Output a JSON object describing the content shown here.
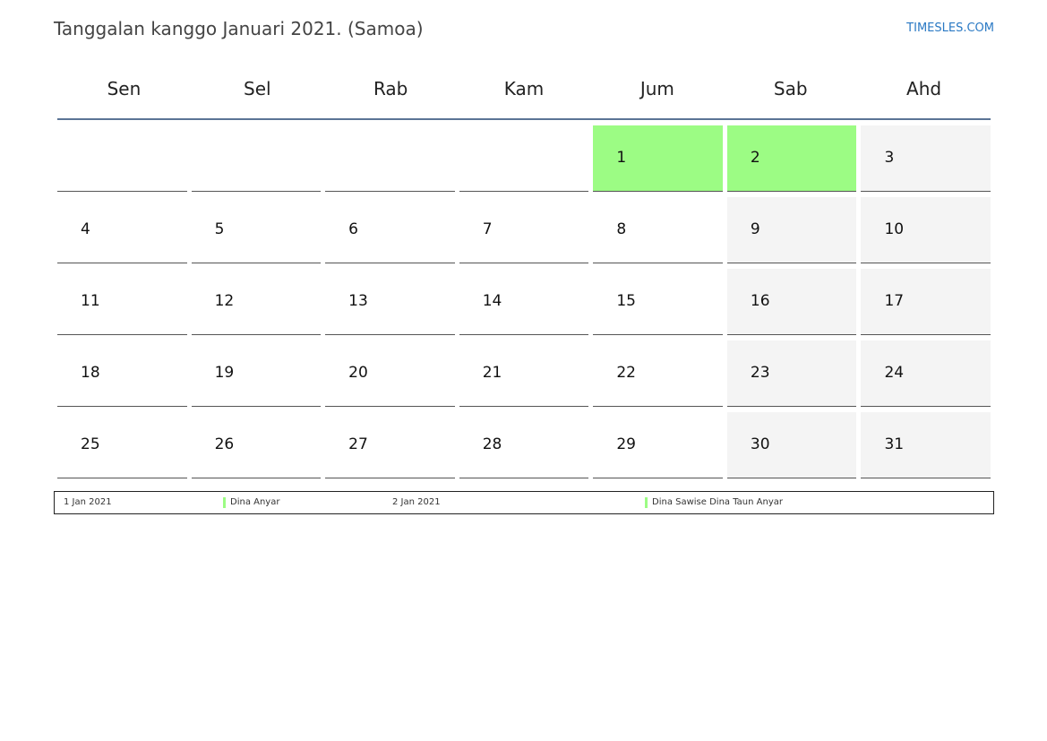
{
  "header": {
    "title": "Tanggalan kanggo Januari 2021. (Samoa)",
    "brand": "TIMESLES.COM"
  },
  "colors": {
    "holiday": "#9cfc84",
    "weekend": "#f4f4f4",
    "rule": "#5b7495",
    "brand": "#2a79c4"
  },
  "calendar": {
    "weekdays": [
      "Sen",
      "Sel",
      "Rab",
      "Kam",
      "Jum",
      "Sab",
      "Ahd"
    ],
    "weeks": [
      [
        {
          "day": ""
        },
        {
          "day": ""
        },
        {
          "day": ""
        },
        {
          "day": ""
        },
        {
          "day": "1",
          "holiday": true
        },
        {
          "day": "2",
          "holiday": true
        },
        {
          "day": "3",
          "weekend": true
        }
      ],
      [
        {
          "day": "4"
        },
        {
          "day": "5"
        },
        {
          "day": "6"
        },
        {
          "day": "7"
        },
        {
          "day": "8"
        },
        {
          "day": "9",
          "weekend": true
        },
        {
          "day": "10",
          "weekend": true
        }
      ],
      [
        {
          "day": "11"
        },
        {
          "day": "12"
        },
        {
          "day": "13"
        },
        {
          "day": "14"
        },
        {
          "day": "15"
        },
        {
          "day": "16",
          "weekend": true
        },
        {
          "day": "17",
          "weekend": true
        }
      ],
      [
        {
          "day": "18"
        },
        {
          "day": "19"
        },
        {
          "day": "20"
        },
        {
          "day": "21"
        },
        {
          "day": "22"
        },
        {
          "day": "23",
          "weekend": true
        },
        {
          "day": "24",
          "weekend": true
        }
      ],
      [
        {
          "day": "25"
        },
        {
          "day": "26"
        },
        {
          "day": "27"
        },
        {
          "day": "28"
        },
        {
          "day": "29"
        },
        {
          "day": "30",
          "weekend": true
        },
        {
          "day": "31",
          "weekend": true
        }
      ]
    ]
  },
  "legend": {
    "items": [
      {
        "date": "1 Jan 2021",
        "name": "Dina Anyar"
      },
      {
        "date": "2 Jan 2021",
        "name": "Dina Sawise Dina Taun Anyar"
      }
    ]
  }
}
